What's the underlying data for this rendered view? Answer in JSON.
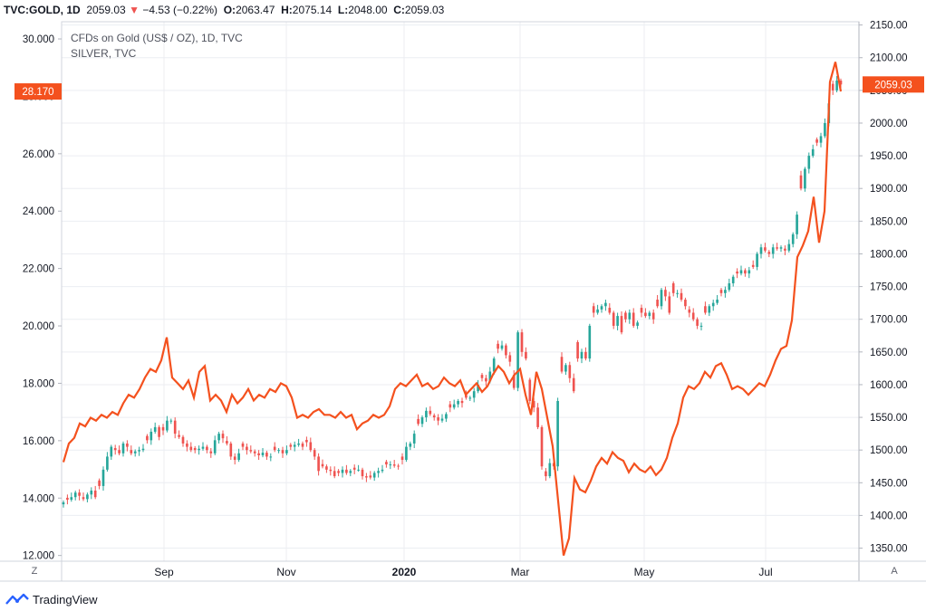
{
  "header": {
    "symbol": "TVC:GOLD, 1D",
    "last": "2059.03",
    "arrow": "▼",
    "change": "−4.53 (−0.22%)",
    "o_label": "O:",
    "o_value": "2063.47",
    "h_label": "H:",
    "h_value": "2075.14",
    "l_label": "L:",
    "l_value": "2048.00",
    "c_label": "C:",
    "c_value": "2059.03"
  },
  "legend": {
    "main": "CFDs on Gold (US$ / OZ), 1D, TVC",
    "compare": "SILVER, TVC"
  },
  "badges": {
    "left": "28.170",
    "right": "2059.03"
  },
  "corner_buttons": {
    "left": "Z",
    "right": "A"
  },
  "footer": {
    "brand": "TradingView"
  },
  "colors": {
    "silver_line": "#f4511e",
    "up": "#26a69a",
    "down": "#ef5350",
    "grid": "#eceef2"
  },
  "chart_data": {
    "type": "line",
    "left_axis": {
      "ticks": [
        "12.000",
        "14.000",
        "16.000",
        "18.000",
        "20.000",
        "22.000",
        "24.000",
        "26.000",
        "28.000",
        "30.000"
      ],
      "range": [
        11.8,
        30.6
      ]
    },
    "right_axis": {
      "ticks": [
        "1350.00",
        "1400.00",
        "1450.00",
        "1500.00",
        "1550.00",
        "1600.00",
        "1650.00",
        "1700.00",
        "1750.00",
        "1800.00",
        "1850.00",
        "1900.00",
        "1950.00",
        "2000.00",
        "2050.00",
        "2100.00",
        "2150.00"
      ],
      "range": [
        1330,
        2155
      ]
    },
    "x_labels": [
      "Sep",
      "Nov",
      "2020",
      "Mar",
      "May",
      "Jul"
    ],
    "series": [
      {
        "name": "SILVER, TVC",
        "axis": "left",
        "values": [
          15.25,
          15.9,
          16.1,
          16.6,
          16.5,
          16.8,
          16.7,
          16.9,
          16.8,
          17.0,
          16.9,
          17.3,
          17.6,
          17.5,
          17.8,
          18.2,
          18.5,
          18.4,
          18.8,
          19.6,
          18.2,
          18.0,
          17.8,
          18.1,
          17.5,
          18.4,
          18.6,
          17.4,
          17.6,
          17.4,
          17.0,
          17.6,
          17.3,
          17.5,
          17.8,
          17.4,
          17.6,
          17.5,
          17.8,
          17.7,
          18.0,
          17.9,
          17.5,
          16.8,
          16.9,
          16.8,
          17.0,
          17.1,
          16.9,
          16.9,
          16.8,
          17.0,
          16.8,
          16.9,
          16.4,
          16.6,
          16.7,
          16.9,
          16.8,
          16.9,
          17.2,
          17.8,
          18.0,
          17.9,
          18.1,
          18.3,
          17.9,
          18.0,
          17.8,
          17.9,
          18.2,
          18.0,
          17.9,
          18.1,
          17.6,
          17.8,
          18.0,
          17.7,
          17.9,
          18.3,
          18.6,
          18.4,
          18.0,
          18.3,
          18.5,
          17.6,
          16.9,
          18.4,
          17.8,
          16.8,
          15.8,
          13.9,
          12.0,
          12.6,
          14.7,
          14.3,
          14.2,
          14.6,
          15.1,
          15.4,
          15.2,
          15.6,
          15.4,
          15.3,
          14.9,
          15.2,
          15.0,
          14.9,
          15.1,
          14.8,
          15.0,
          15.4,
          16.1,
          16.6,
          17.5,
          17.9,
          17.8,
          18.0,
          18.4,
          18.2,
          18.6,
          18.7,
          18.3,
          17.8,
          17.9,
          17.8,
          17.6,
          17.8,
          18.0,
          17.9,
          18.3,
          18.8,
          19.2,
          19.3,
          20.2,
          22.4,
          22.8,
          23.3,
          24.5,
          22.9,
          24.0,
          28.5,
          29.2,
          28.17
        ]
      },
      {
        "name": "CFDs on Gold (US$ / OZ), 1D, TVC",
        "axis": "right",
        "kind": "candlestick",
        "closes": [
          1420,
          1424,
          1428,
          1435,
          1430,
          1425,
          1432,
          1438,
          1428,
          1445,
          1470,
          1490,
          1505,
          1500,
          1495,
          1510,
          1505,
          1495,
          1498,
          1500,
          1502,
          1515,
          1528,
          1535,
          1520,
          1530,
          1545,
          1545,
          1525,
          1520,
          1510,
          1505,
          1500,
          1500,
          1502,
          1505,
          1500,
          1495,
          1515,
          1525,
          1518,
          1510,
          1490,
          1485,
          1495,
          1505,
          1500,
          1498,
          1495,
          1492,
          1496,
          1490,
          1490,
          1500,
          1500,
          1495,
          1500,
          1505,
          1508,
          1510,
          1505,
          1512,
          1500,
          1490,
          1468,
          1475,
          1470,
          1468,
          1460,
          1465,
          1470,
          1465,
          1468,
          1470,
          1470,
          1460,
          1458,
          1458,
          1465,
          1468,
          1470,
          1478,
          1478,
          1476,
          1475,
          1485,
          1505,
          1510,
          1525,
          1540,
          1550,
          1560,
          1555,
          1550,
          1545,
          1548,
          1555,
          1565,
          1570,
          1575,
          1572,
          1580,
          1580,
          1590,
          1600,
          1610,
          1605,
          1620,
          1640,
          1655,
          1660,
          1645,
          1635,
          1595,
          1680,
          1650,
          1640,
          1575,
          1565,
          1535,
          1475,
          1460,
          1480,
          1475,
          1575,
          1620,
          1630,
          1610,
          1590,
          1640,
          1650,
          1640,
          1690,
          1710,
          1715,
          1720,
          1725,
          1710,
          1690,
          1705,
          1680,
          1700,
          1710,
          1690,
          1695,
          1710,
          1705,
          1710,
          1700,
          1720,
          1745,
          1735,
          1710,
          1740,
          1740,
          1730,
          1720,
          1710,
          1700,
          1690,
          1690,
          1710,
          1720,
          1725,
          1730,
          1740,
          1745,
          1755,
          1765,
          1770,
          1775,
          1770,
          1775,
          1780,
          1800,
          1810,
          1805,
          1800,
          1810,
          1808,
          1810,
          1805,
          1815,
          1830,
          1860,
          1900,
          1930,
          1950,
          1960,
          1970,
          1980,
          2000,
          2030,
          2050,
          2065,
          2059.03
        ]
      }
    ]
  }
}
